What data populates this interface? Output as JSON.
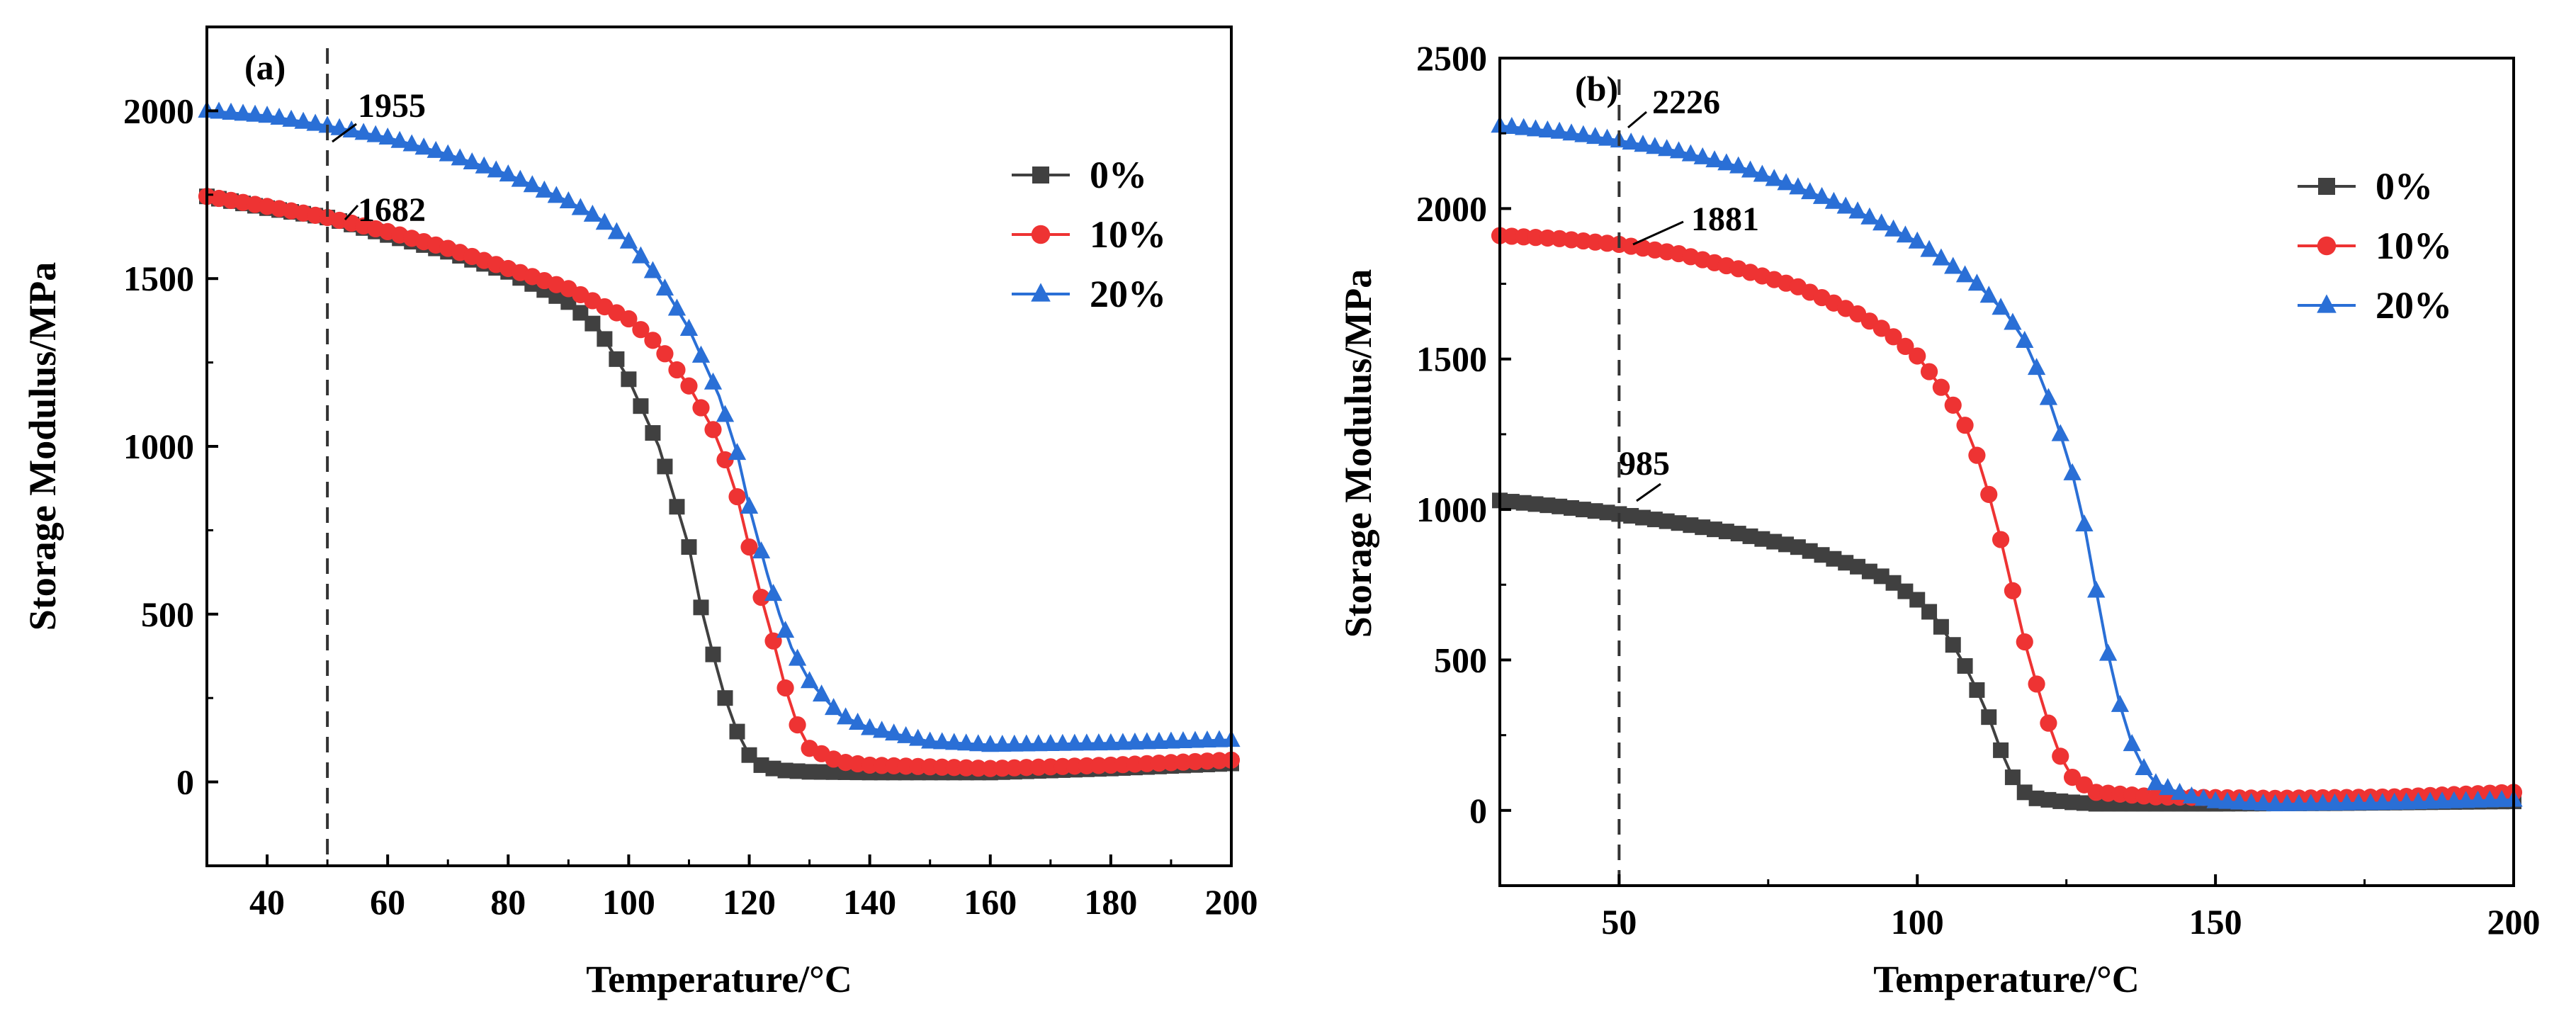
{
  "chart_data": [
    {
      "type": "scatter-line",
      "panel_label": "(a)",
      "xlabel": "Temperature/°C",
      "ylabel": "Storage Modulus/MPa",
      "xlim": [
        30,
        200
      ],
      "ylim": [
        -250,
        2250
      ],
      "xticks": [
        40,
        60,
        80,
        100,
        120,
        140,
        160,
        180,
        200
      ],
      "xtick_labels": [
        "40",
        "60",
        "80",
        "100",
        "120",
        "140",
        "160",
        "180",
        "200"
      ],
      "yticks": [
        0,
        500,
        1000,
        1500,
        2000
      ],
      "ytick_labels": [
        "0",
        "500",
        "1000",
        "1500",
        "2000"
      ],
      "reference_line_x": 50,
      "legend": [
        "0%",
        "10%",
        "20%"
      ],
      "legend_position": "upper-right",
      "annotations": [
        {
          "text": "1955",
          "x": 50,
          "y": 1955
        },
        {
          "text": "1682",
          "x": 50,
          "y": 1682
        }
      ],
      "series": [
        {
          "name": "0%",
          "color": "#404040",
          "marker": "square",
          "points": [
            [
              30,
              1745
            ],
            [
              40,
              1710
            ],
            [
              50,
              1682
            ],
            [
              60,
              1630
            ],
            [
              70,
              1580
            ],
            [
              80,
              1520
            ],
            [
              90,
              1430
            ],
            [
              95,
              1350
            ],
            [
              100,
              1200
            ],
            [
              105,
              1000
            ],
            [
              108,
              820
            ],
            [
              110,
              700
            ],
            [
              112,
              520
            ],
            [
              114,
              380
            ],
            [
              116,
              250
            ],
            [
              118,
              150
            ],
            [
              120,
              80
            ],
            [
              122,
              50
            ],
            [
              125,
              35
            ],
            [
              130,
              30
            ],
            [
              140,
              28
            ],
            [
              160,
              28
            ],
            [
              180,
              40
            ],
            [
              200,
              55
            ]
          ]
        },
        {
          "name": "10%",
          "color": "#ee3333",
          "marker": "circle",
          "points": [
            [
              30,
              1745
            ],
            [
              40,
              1715
            ],
            [
              50,
              1682
            ],
            [
              60,
              1640
            ],
            [
              70,
              1590
            ],
            [
              80,
              1530
            ],
            [
              90,
              1470
            ],
            [
              100,
              1380
            ],
            [
              105,
              1300
            ],
            [
              110,
              1180
            ],
            [
              114,
              1050
            ],
            [
              116,
              960
            ],
            [
              118,
              850
            ],
            [
              120,
              700
            ],
            [
              122,
              550
            ],
            [
              124,
              420
            ],
            [
              126,
              280
            ],
            [
              128,
              170
            ],
            [
              130,
              100
            ],
            [
              135,
              60
            ],
            [
              140,
              50
            ],
            [
              160,
              40
            ],
            [
              180,
              50
            ],
            [
              200,
              65
            ]
          ]
        },
        {
          "name": "20%",
          "color": "#2a6fd6",
          "marker": "triangle",
          "points": [
            [
              30,
              2000
            ],
            [
              40,
              1985
            ],
            [
              50,
              1955
            ],
            [
              60,
              1920
            ],
            [
              70,
              1870
            ],
            [
              80,
              1810
            ],
            [
              90,
              1730
            ],
            [
              95,
              1680
            ],
            [
              100,
              1610
            ],
            [
              105,
              1500
            ],
            [
              110,
              1350
            ],
            [
              115,
              1150
            ],
            [
              118,
              980
            ],
            [
              120,
              820
            ],
            [
              123,
              620
            ],
            [
              125,
              500
            ],
            [
              127,
              400
            ],
            [
              130,
              300
            ],
            [
              135,
              200
            ],
            [
              140,
              160
            ],
            [
              150,
              120
            ],
            [
              160,
              110
            ],
            [
              180,
              115
            ],
            [
              200,
              125
            ]
          ]
        }
      ]
    },
    {
      "type": "scatter-line",
      "panel_label": "(b)",
      "xlabel": "Temperature/°C",
      "ylabel": "Storage Modulus/MPa",
      "xlim": [
        30,
        200
      ],
      "ylim": [
        -250,
        2500
      ],
      "xticks": [
        50,
        100,
        150,
        200
      ],
      "xtick_labels": [
        "50",
        "100",
        "150",
        "200"
      ],
      "yticks": [
        0,
        500,
        1000,
        1500,
        2000,
        2500
      ],
      "ytick_labels": [
        "0",
        "500",
        "1000",
        "1500",
        "2000",
        "2500"
      ],
      "reference_line_x": 50,
      "legend": [
        "0%",
        "10%",
        "20%"
      ],
      "legend_position": "upper-right",
      "annotations": [
        {
          "text": "2226",
          "x": 50,
          "y": 2226
        },
        {
          "text": "1881",
          "x": 50,
          "y": 1881
        },
        {
          "text": "985",
          "x": 50,
          "y": 985
        }
      ],
      "series": [
        {
          "name": "0%",
          "color": "#404040",
          "marker": "square",
          "points": [
            [
              30,
              1030
            ],
            [
              40,
              1010
            ],
            [
              50,
              985
            ],
            [
              60,
              955
            ],
            [
              70,
              920
            ],
            [
              80,
              875
            ],
            [
              90,
              810
            ],
            [
              95,
              770
            ],
            [
              100,
              700
            ],
            [
              103,
              640
            ],
            [
              106,
              550
            ],
            [
              108,
              480
            ],
            [
              110,
              400
            ],
            [
              112,
              310
            ],
            [
              114,
              200
            ],
            [
              116,
              110
            ],
            [
              118,
              60
            ],
            [
              120,
              40
            ],
            [
              125,
              28
            ],
            [
              130,
              22
            ],
            [
              150,
              22
            ],
            [
              170,
              24
            ],
            [
              200,
              30
            ]
          ]
        },
        {
          "name": "10%",
          "color": "#ee3333",
          "marker": "circle",
          "points": [
            [
              30,
              1910
            ],
            [
              40,
              1900
            ],
            [
              50,
              1881
            ],
            [
              60,
              1850
            ],
            [
              70,
              1800
            ],
            [
              80,
              1740
            ],
            [
              90,
              1650
            ],
            [
              95,
              1590
            ],
            [
              100,
              1510
            ],
            [
              105,
              1380
            ],
            [
              108,
              1280
            ],
            [
              110,
              1180
            ],
            [
              112,
              1050
            ],
            [
              114,
              900
            ],
            [
              116,
              730
            ],
            [
              118,
              560
            ],
            [
              120,
              420
            ],
            [
              122,
              290
            ],
            [
              124,
              180
            ],
            [
              126,
              110
            ],
            [
              130,
              60
            ],
            [
              140,
              45
            ],
            [
              160,
              40
            ],
            [
              180,
              45
            ],
            [
              200,
              60
            ]
          ]
        },
        {
          "name": "20%",
          "color": "#2a6fd6",
          "marker": "triangle",
          "points": [
            [
              30,
              2275
            ],
            [
              40,
              2255
            ],
            [
              50,
              2226
            ],
            [
              60,
              2190
            ],
            [
              70,
              2140
            ],
            [
              80,
              2070
            ],
            [
              90,
              1990
            ],
            [
              100,
              1890
            ],
            [
              105,
              1820
            ],
            [
              110,
              1750
            ],
            [
              115,
              1650
            ],
            [
              118,
              1560
            ],
            [
              120,
              1470
            ],
            [
              122,
              1370
            ],
            [
              124,
              1250
            ],
            [
              126,
              1120
            ],
            [
              128,
              950
            ],
            [
              130,
              730
            ],
            [
              132,
              520
            ],
            [
              134,
              350
            ],
            [
              136,
              220
            ],
            [
              138,
              140
            ],
            [
              140,
              90
            ],
            [
              145,
              50
            ],
            [
              150,
              30
            ],
            [
              160,
              20
            ],
            [
              180,
              25
            ],
            [
              200,
              35
            ]
          ]
        }
      ]
    }
  ]
}
